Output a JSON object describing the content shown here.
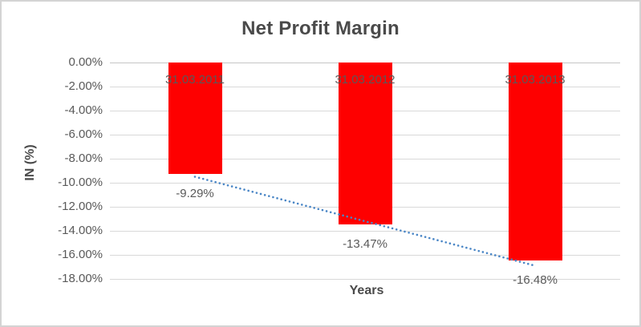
{
  "chart": {
    "title": "Net Profit Margin",
    "y_axis_title": "IN (%)",
    "x_axis_title": "Years",
    "colors": {
      "bar": "#fe0000",
      "trendline": "#4a86c6",
      "gridline": "#d9d9d9",
      "zero_line": "#c6c6c6",
      "label_text": "#595959",
      "title_text": "#4a4a4a",
      "border": "#d4d4d4"
    }
  },
  "chart_data": {
    "type": "bar",
    "title": "Net Profit Margin",
    "xlabel": "Years",
    "ylabel": "IN (%)",
    "categories": [
      "31.03.2011",
      "31.03.2012",
      "31.03.2013"
    ],
    "values": [
      -9.29,
      -13.47,
      -16.48
    ],
    "data_labels": [
      "-9.29%",
      "-13.47%",
      "-16.48%"
    ],
    "y_ticks": [
      "0.00%",
      "-2.00%",
      "-4.00%",
      "-6.00%",
      "-8.00%",
      "-10.00%",
      "-12.00%",
      "-14.00%",
      "-16.00%",
      "-18.00%"
    ],
    "y_tick_values": [
      0,
      -2,
      -4,
      -6,
      -8,
      -10,
      -12,
      -14,
      -16,
      -18
    ],
    "ylim": [
      -18,
      0
    ],
    "grid": true,
    "legend": false,
    "bar_color": "#fe0000",
    "trendline": {
      "type": "linear",
      "style": "dotted",
      "color": "#4a86c6",
      "start_value": -9.5,
      "end_value": -16.9
    }
  }
}
